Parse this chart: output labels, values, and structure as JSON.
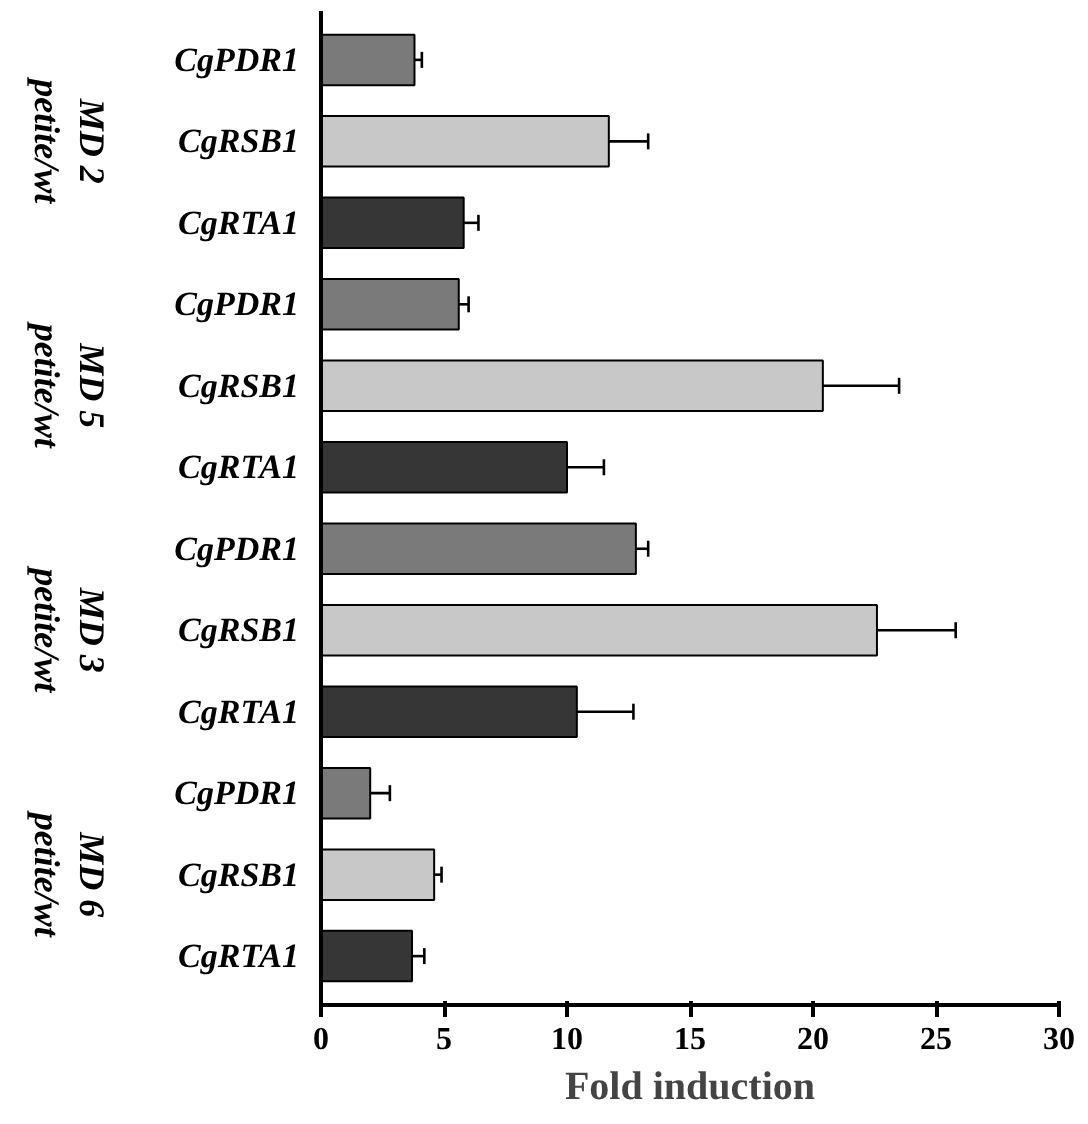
{
  "chart_data": {
    "type": "bar",
    "orientation": "horizontal",
    "categories": [
      "CgPDR1",
      "CgRSB1",
      "CgRTA1",
      "CgPDR1",
      "CgRSB1",
      "CgRTA1",
      "CgPDR1",
      "CgRSB1",
      "CgRTA1",
      "CgPDR1",
      "CgRSB1",
      "CgRTA1"
    ],
    "values": [
      3.8,
      11.7,
      5.8,
      5.6,
      20.4,
      10.0,
      12.8,
      22.6,
      10.4,
      2.0,
      4.6,
      3.7
    ],
    "errors": [
      0.3,
      1.6,
      0.6,
      0.4,
      3.1,
      1.5,
      0.5,
      3.2,
      2.3,
      0.8,
      0.3,
      0.5
    ],
    "colors": [
      "#7a7a7a",
      "#c8c8c8",
      "#363636",
      "#7a7a7a",
      "#c8c8c8",
      "#363636",
      "#7a7a7a",
      "#c8c8c8",
      "#363636",
      "#7a7a7a",
      "#c8c8c8",
      "#363636"
    ],
    "annotations": [
      "MD 2\npetite/wt",
      "MD 5\npetite/wt",
      "MD 3\npetite/wt",
      "MD 6\npetite/wt"
    ],
    "xlabel": "Fold induction",
    "xlim": [
      0,
      30
    ],
    "xticks": [
      0,
      5,
      10,
      15,
      20,
      25,
      30
    ],
    "grid": false
  }
}
